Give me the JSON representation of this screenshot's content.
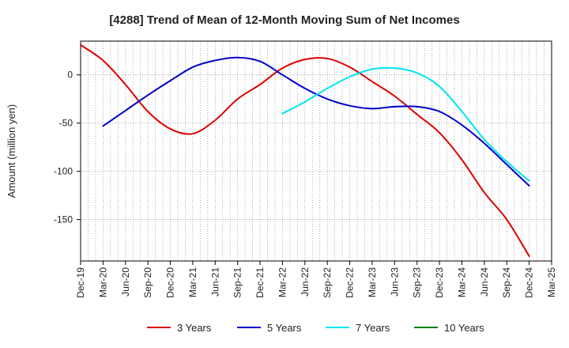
{
  "chart_data": {
    "type": "line",
    "title": "[4288]  Trend of Mean of 12-Month Moving Sum of Net Incomes",
    "ylabel": "Amount (million yen)",
    "xlabel": "",
    "x_ticks": [
      "Dec-19",
      "Mar-20",
      "Jun-20",
      "Sep-20",
      "Dec-20",
      "Mar-21",
      "Jun-21",
      "Sep-21",
      "Dec-21",
      "Mar-22",
      "Jun-22",
      "Sep-22",
      "Dec-22",
      "Mar-23",
      "Jun-23",
      "Sep-23",
      "Dec-23",
      "Mar-24",
      "Jun-24",
      "Sep-24",
      "Dec-24",
      "Mar-25"
    ],
    "y_ticks": [
      0,
      -50,
      -100,
      -150
    ],
    "ylim": [
      -193,
      35
    ],
    "grid": "dotted",
    "legend_position": "bottom",
    "series": [
      {
        "name": "3 Years",
        "color": "#dd0000",
        "points": [
          [
            "Dec-19",
            31
          ],
          [
            "Mar-20",
            15
          ],
          [
            "Jun-20",
            -10
          ],
          [
            "Sep-20",
            -38
          ],
          [
            "Dec-20",
            -56
          ],
          [
            "Mar-21",
            -61
          ],
          [
            "Jun-21",
            -47
          ],
          [
            "Sep-21",
            -25
          ],
          [
            "Dec-21",
            -10
          ],
          [
            "Mar-22",
            7
          ],
          [
            "Jun-22",
            16
          ],
          [
            "Sep-22",
            17
          ],
          [
            "Dec-22",
            8
          ],
          [
            "Mar-23",
            -7
          ],
          [
            "Jun-23",
            -22
          ],
          [
            "Sep-23",
            -41
          ],
          [
            "Dec-23",
            -60
          ],
          [
            "Mar-24",
            -88
          ],
          [
            "Jun-24",
            -122
          ],
          [
            "Sep-24",
            -150
          ],
          [
            "Dec-24",
            -188
          ]
        ]
      },
      {
        "name": "5 Years",
        "color": "#0000cc",
        "points": [
          [
            "Mar-20",
            -53
          ],
          [
            "Jun-20",
            -37
          ],
          [
            "Sep-20",
            -21
          ],
          [
            "Dec-20",
            -6
          ],
          [
            "Mar-21",
            8
          ],
          [
            "Jun-21",
            15
          ],
          [
            "Sep-21",
            18
          ],
          [
            "Dec-21",
            14
          ],
          [
            "Mar-22",
            0
          ],
          [
            "Jun-22",
            -14
          ],
          [
            "Sep-22",
            -25
          ],
          [
            "Dec-22",
            -32
          ],
          [
            "Mar-23",
            -35
          ],
          [
            "Jun-23",
            -33
          ],
          [
            "Sep-23",
            -33
          ],
          [
            "Dec-23",
            -38
          ],
          [
            "Mar-24",
            -52
          ],
          [
            "Jun-24",
            -71
          ],
          [
            "Sep-24",
            -93
          ],
          [
            "Dec-24",
            -115
          ]
        ]
      },
      {
        "name": "7 Years",
        "color": "#00e5ee",
        "points": [
          [
            "Mar-22",
            -40
          ],
          [
            "Jun-22",
            -28
          ],
          [
            "Sep-22",
            -14
          ],
          [
            "Dec-22",
            -2
          ],
          [
            "Mar-23",
            6
          ],
          [
            "Jun-23",
            7
          ],
          [
            "Sep-23",
            2
          ],
          [
            "Dec-23",
            -12
          ],
          [
            "Mar-24",
            -38
          ],
          [
            "Jun-24",
            -67
          ],
          [
            "Sep-24",
            -90
          ],
          [
            "Dec-24",
            -110
          ]
        ]
      },
      {
        "name": "10 Years",
        "color": "#008000",
        "points": []
      }
    ]
  }
}
